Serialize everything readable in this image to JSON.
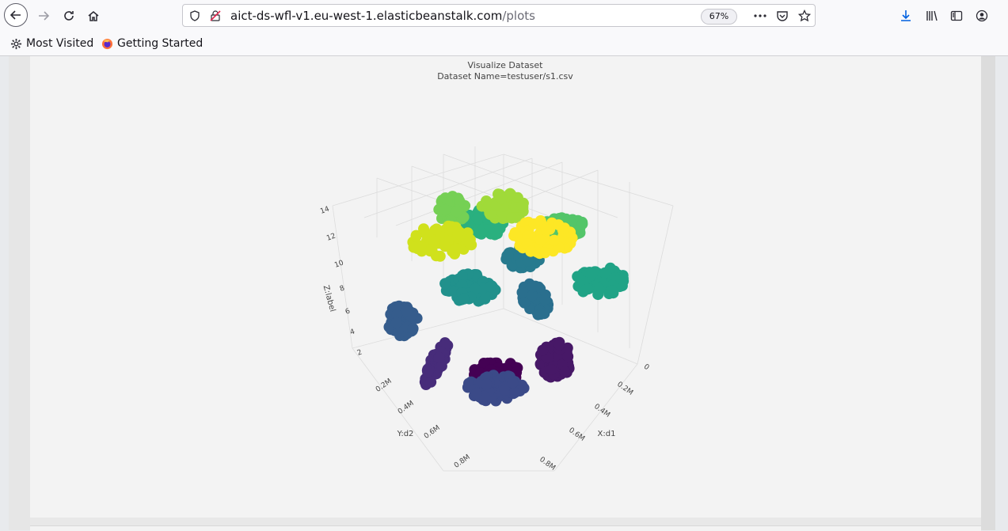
{
  "browser": {
    "url_host": "aict-ds-wfl-v1.eu-west-1.elasticbeanstalk.com",
    "url_path": "/plots",
    "zoom": "67%",
    "bookmarks": [
      {
        "label": "Most Visited",
        "icon": "gear-icon"
      },
      {
        "label": "Getting Started",
        "icon": "firefox-icon"
      }
    ]
  },
  "plot": {
    "title": "Visualize Dataset",
    "subtitle": "Dataset Name=testuser/s1.csv"
  },
  "chart_data": {
    "type": "scatter",
    "dimensions": "3d",
    "title": "Visualize Dataset",
    "subtitle": "Dataset Name=testuser/s1.csv",
    "xlabel": "X:d1",
    "ylabel": "Y:d2",
    "zlabel": "Z:label",
    "x_ticks": [
      "0",
      "0.2M",
      "0.4M",
      "0.6M",
      "0.8M"
    ],
    "y_ticks": [
      "0.2M",
      "0.4M",
      "0.6M",
      "0.8M"
    ],
    "z_ticks": [
      "2",
      "4",
      "6",
      "8",
      "10",
      "12",
      "14"
    ],
    "colorscale": "viridis",
    "clusters": [
      {
        "label": 1,
        "color": "#440154"
      },
      {
        "label": 2,
        "color": "#471867"
      },
      {
        "label": 3,
        "color": "#472c7a"
      },
      {
        "label": 4,
        "color": "#3b4a88"
      },
      {
        "label": 5,
        "color": "#355c8c"
      },
      {
        "label": 6,
        "color": "#2a6f8e"
      },
      {
        "label": 7,
        "color": "#277a8e"
      },
      {
        "label": 8,
        "color": "#21918c"
      },
      {
        "label": 9,
        "color": "#20a386"
      },
      {
        "label": 10,
        "color": "#2ab07f"
      },
      {
        "label": 11,
        "color": "#53c569"
      },
      {
        "label": 12,
        "color": "#75d054"
      },
      {
        "label": 13,
        "color": "#a0da39"
      },
      {
        "label": 14,
        "color": "#d0e11c"
      },
      {
        "label": 15,
        "color": "#fde725"
      }
    ]
  }
}
